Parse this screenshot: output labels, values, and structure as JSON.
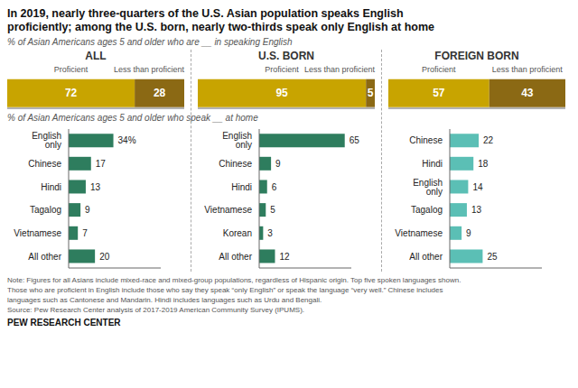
{
  "chart_data": [
    {
      "type": "bar",
      "title": "In 2019, nearly three-quarters of the U.S. Asian population speaks English\nproficiently; among the U.S. born, nearly two-thirds speak only English at home",
      "subtitle": "% of Asian Americans ages 5 and older who are __ in speaking English",
      "orientation": "horizontal",
      "stacked": true,
      "data_labels": true,
      "tick_labels": false,
      "grid": false,
      "categories": [
        "ALL",
        "U.S. BORN",
        "FOREIGN BORN"
      ],
      "series": [
        {
          "name": "Proficient",
          "color": "#c8a400",
          "values": [
            72,
            95,
            57
          ]
        },
        {
          "name": "Less than proficient",
          "color": "#8b6914",
          "values": [
            28,
            5,
            43
          ]
        }
      ],
      "xlim": [
        0,
        100
      ],
      "annotations": [
        "Note: Figures for all Asians include mixed-race and mixed-group populations, regardless of Hispanic origin. Top five spoken languages shown.\nThose who are proficient in English include those who say they speak “only English” or speak the language “very well.” Chinese includes\nlanguages such as Cantonese and Mandarin. Hindi includes languages such as Urdu and Bengali.\nSource: Pew Research Center analysis of 2017-2019 American Community Survey (IPUMS).",
        "PEW RESEARCH CENTER"
      ]
    },
    {
      "type": "bar",
      "subtitle": "% of Asian Americans ages 5 and older who speak __ at home",
      "orientation": "horizontal",
      "data_labels": true,
      "tick_labels": "y",
      "grid": false,
      "categories": [
        "English only",
        "Chinese",
        "Hindi",
        "Tagalog",
        "Vietnamese",
        "All other"
      ],
      "values": [
        34,
        17,
        13,
        9,
        7,
        20
      ],
      "value_labels": [
        "34%",
        "17",
        "13",
        "9",
        "7",
        "20"
      ],
      "color": "#2e7d5e",
      "xlim": [
        0,
        70
      ]
    },
    {
      "type": "bar",
      "orientation": "horizontal",
      "data_labels": true,
      "tick_labels": "y",
      "grid": false,
      "categories": [
        "English only",
        "Chinese",
        "Hindi",
        "Vietnamese",
        "Korean",
        "All other"
      ],
      "values": [
        65,
        9,
        6,
        5,
        3,
        12
      ],
      "color": "#2e7d5e",
      "xlim": [
        0,
        70
      ]
    },
    {
      "type": "bar",
      "orientation": "horizontal",
      "data_labels": true,
      "tick_labels": "y",
      "grid": false,
      "categories": [
        "Chinese",
        "Hindi",
        "English only",
        "Tagalog",
        "Vietnamese",
        "All other"
      ],
      "values": [
        22,
        18,
        14,
        13,
        9,
        25
      ],
      "color": "#5bbfb5",
      "xlim": [
        0,
        70
      ]
    }
  ]
}
